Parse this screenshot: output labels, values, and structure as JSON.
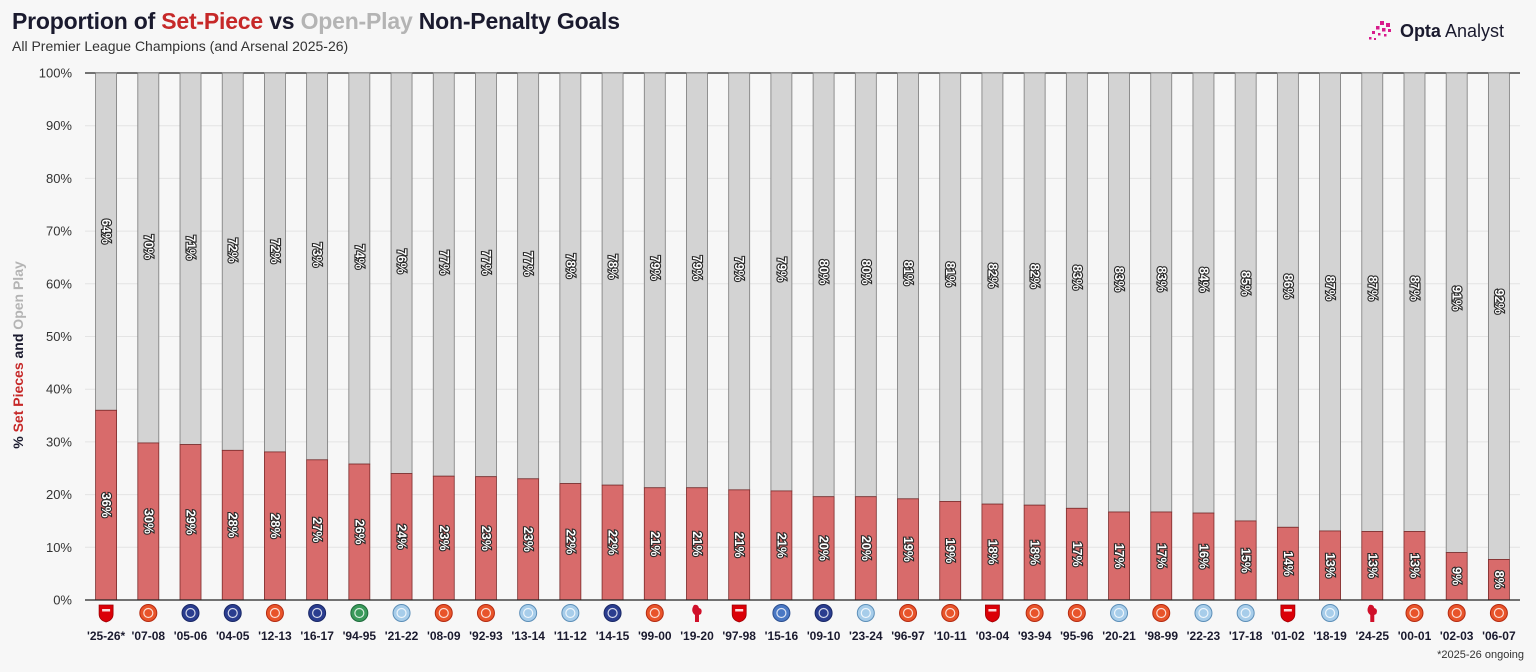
{
  "title": {
    "prefix": "Proportion of ",
    "setpiece": "Set-Piece",
    "vs": " vs ",
    "openplay": "Open-Play",
    "suffix": " Non-Penalty Goals"
  },
  "subtitle": "All Premier League Champions (and Arsenal 2025-26)",
  "brand": {
    "name_bold": "Opta",
    "name_light": " Analyst"
  },
  "ylabel": {
    "prefix": "% ",
    "setpiece": "Set Pieces",
    "mid": " and ",
    "openplay": "Open Play"
  },
  "footnote": "*2025-26 ongoing",
  "colors": {
    "setpiece": "#d86b6b",
    "openplay": "#d3d3d3",
    "title_red": "#c62828",
    "title_grey": "#b4b4b4",
    "brand_pink": "#d81b8c"
  },
  "chart_data": {
    "type": "bar",
    "stacked": true,
    "ylim": [
      0,
      100
    ],
    "yticks": [
      "0%",
      "10%",
      "20%",
      "30%",
      "40%",
      "50%",
      "60%",
      "70%",
      "80%",
      "90%",
      "100%"
    ],
    "grid": true,
    "categories": [
      "'25-26*",
      "'07-08",
      "'05-06",
      "'04-05",
      "'12-13",
      "'16-17",
      "'94-95",
      "'21-22",
      "'08-09",
      "'92-93",
      "'13-14",
      "'11-12",
      "'14-15",
      "'99-00",
      "'19-20",
      "'97-98",
      "'15-16",
      "'09-10",
      "'23-24",
      "'96-97",
      "'10-11",
      "'03-04",
      "'93-94",
      "'95-96",
      "'20-21",
      "'98-99",
      "'22-23",
      "'17-18",
      "'01-02",
      "'18-19",
      "'24-25",
      "'00-01",
      "'02-03",
      "'06-07"
    ],
    "clubs": [
      "arsenal-icon",
      "man-utd-icon",
      "chelsea-icon",
      "chelsea-icon",
      "man-utd-icon",
      "chelsea-icon",
      "blackburn-icon",
      "man-city-icon",
      "man-utd-icon",
      "man-utd-icon",
      "man-city-icon",
      "man-city-icon",
      "chelsea-icon",
      "man-utd-icon",
      "liverpool-icon",
      "arsenal-icon",
      "leicester-icon",
      "chelsea-icon",
      "man-city-icon",
      "man-utd-icon",
      "man-utd-icon",
      "arsenal-icon",
      "man-utd-icon",
      "man-utd-icon",
      "man-city-icon",
      "man-utd-icon",
      "man-city-icon",
      "man-city-icon",
      "arsenal-icon",
      "man-city-icon",
      "liverpool-icon",
      "man-utd-icon",
      "man-utd-icon",
      "man-utd-icon"
    ],
    "series": [
      {
        "values": [
          36,
          29.8,
          29.5,
          28.4,
          28.1,
          26.6,
          25.8,
          24,
          23.5,
          23.4,
          23,
          22.1,
          21.8,
          21.3,
          21.3,
          20.9,
          20.7,
          19.6,
          19.6,
          19.2,
          18.7,
          18.2,
          18,
          17.4,
          16.7,
          16.7,
          16.5,
          15,
          13.8,
          13.1,
          13,
          13,
          9,
          7.7
        ],
        "labels": [
          "36%",
          "30%",
          "29%",
          "28%",
          "28%",
          "27%",
          "26%",
          "24%",
          "23%",
          "23%",
          "23%",
          "22%",
          "22%",
          "21%",
          "21%",
          "21%",
          "21%",
          "20%",
          "20%",
          "19%",
          "19%",
          "18%",
          "18%",
          "17%",
          "17%",
          "17%",
          "16%",
          "15%",
          "14%",
          "13%",
          "13%",
          "13%",
          "9%",
          "8%"
        ]
      },
      {
        "labels": [
          "64%",
          "70%",
          "71%",
          "72%",
          "72%",
          "73%",
          "74%",
          "76%",
          "77%",
          "77%",
          "77%",
          "78%",
          "78%",
          "79%",
          "79%",
          "79%",
          "79%",
          "80%",
          "80%",
          "81%",
          "81%",
          "82%",
          "82%",
          "83%",
          "83%",
          "83%",
          "84%",
          "85%",
          "86%",
          "87%",
          "87%",
          "87%",
          "91%",
          "92%"
        ]
      }
    ]
  }
}
